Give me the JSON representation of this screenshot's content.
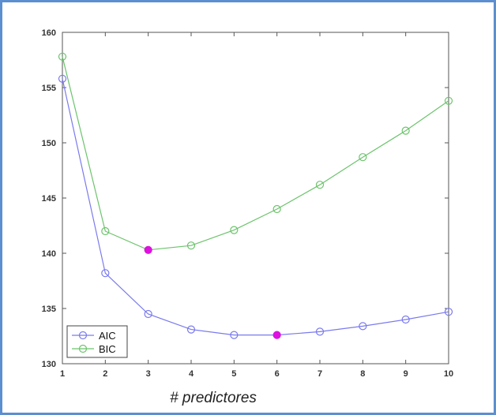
{
  "chart_data": {
    "type": "line",
    "x": [
      1,
      2,
      3,
      4,
      5,
      6,
      7,
      8,
      9,
      10
    ],
    "xlabel": "# predictores",
    "ylabel": "",
    "title": "",
    "xlim": [
      1,
      10
    ],
    "ylim": [
      130,
      160
    ],
    "xticks": [
      1,
      2,
      3,
      4,
      5,
      6,
      7,
      8,
      9,
      10
    ],
    "yticks": [
      130,
      135,
      140,
      145,
      150,
      155,
      160
    ],
    "grid": false,
    "legend_position": "bottom-left",
    "series": [
      {
        "name": "AIC",
        "color": "#7a7aee",
        "marker": "circle-open",
        "values": [
          155.8,
          138.2,
          134.5,
          133.1,
          132.6,
          132.6,
          132.9,
          133.4,
          134.0,
          134.7
        ],
        "highlight_index": 5
      },
      {
        "name": "BIC",
        "color": "#6cc36c",
        "marker": "circle-open",
        "values": [
          157.8,
          142.0,
          140.3,
          140.7,
          142.1,
          144.0,
          146.2,
          148.7,
          151.1,
          153.8
        ],
        "highlight_index": 2
      }
    ],
    "highlight_color": "#e010e0"
  }
}
